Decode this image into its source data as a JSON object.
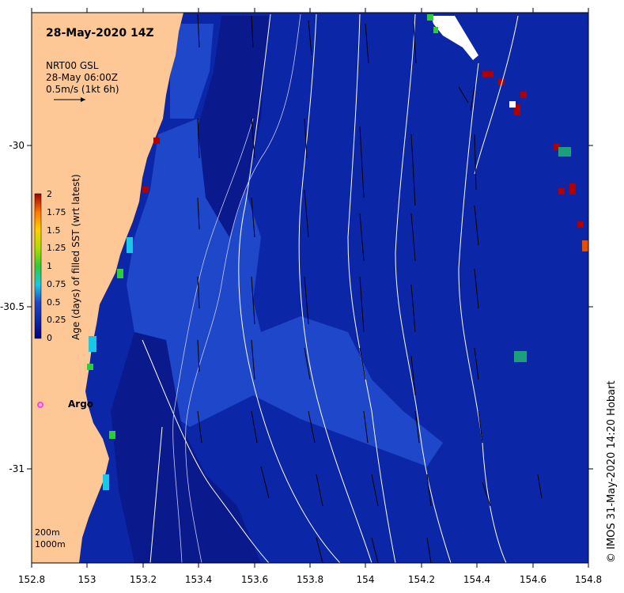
{
  "map": {
    "title": "28-May-2020 14Z",
    "source_line1": "NRT00 GSL",
    "source_line2": "28-May 06:00Z",
    "source_line3": "0.5m/s (1kt 6h)",
    "argo_label": "Argo",
    "legend_200": "200m",
    "legend_1000": "1000m",
    "credit": "©  IMOS 31-May-2020 14:20 Hobart",
    "x_ticks": [
      "152.8",
      "153",
      "153.2",
      "153.4",
      "153.6",
      "153.8",
      "154",
      "154.2",
      "154.4",
      "154.6",
      "154.8"
    ],
    "y_ticks": [
      "-30",
      "-30.5",
      "-31"
    ],
    "colors": {
      "land": "#fdc896",
      "ocean_deep": "#0a1a8c",
      "ocean_mid": "#0b27a8",
      "ocean_light": "#1f47c9",
      "coastal_cyan": "#19c8e6",
      "green": "#2ecc3a",
      "red_hot": "#b00000",
      "argo_marker": "#ff3cff"
    }
  },
  "colorbar": {
    "title": "Age (days) of filled SST (wrt latest)",
    "ticks": [
      "2",
      "1.75",
      "1.5",
      "1.25",
      "1",
      "0.75",
      "0.5",
      "0.25",
      "0"
    ]
  }
}
